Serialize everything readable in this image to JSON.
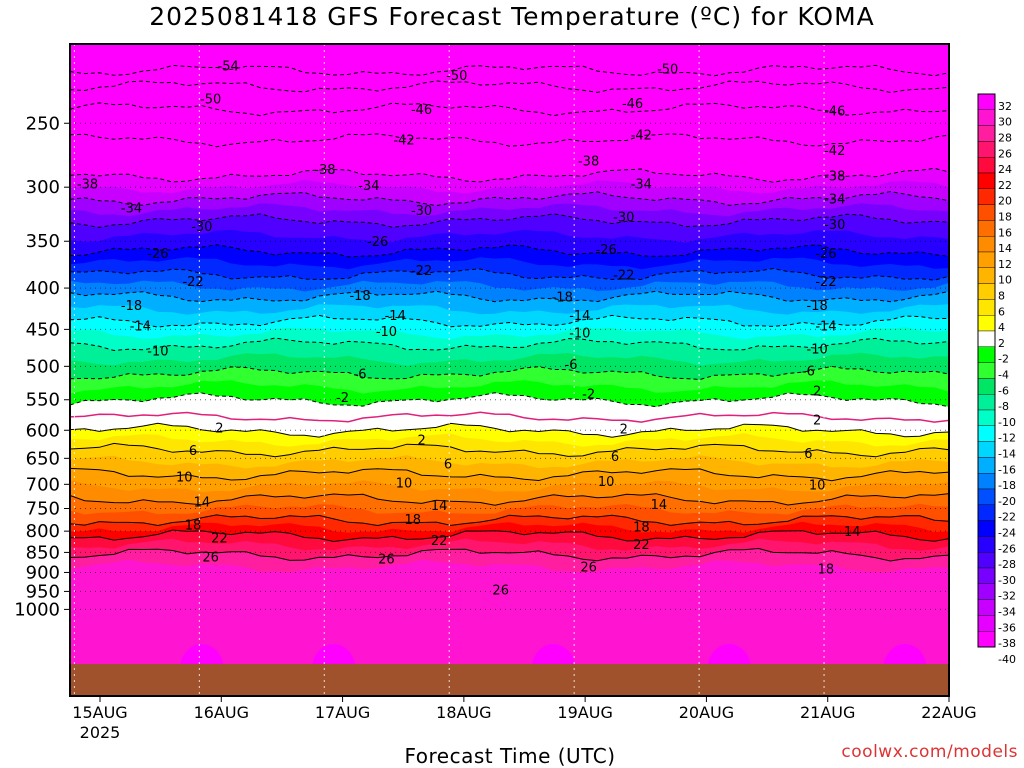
{
  "chart_data": {
    "type": "heatmap",
    "title": "2025081418 GFS Forecast Temperature (ºC) for KOMA",
    "xlabel": "Forecast Time (UTC)",
    "ylabel": "",
    "x_ticks": [
      "15AUG",
      "16AUG",
      "17AUG",
      "18AUG",
      "19AUG",
      "20AUG",
      "21AUG",
      "22AUG"
    ],
    "x_tick_year": "2025",
    "y_ticks": [
      250,
      300,
      350,
      400,
      450,
      500,
      550,
      600,
      650,
      700,
      750,
      800,
      850,
      900,
      950,
      1000
    ],
    "y_axis": {
      "type": "log-pressure",
      "range": [
        1000,
        200
      ],
      "units": "hPa"
    },
    "colorbar": {
      "levels": [
        32,
        30,
        28,
        26,
        24,
        22,
        20,
        18,
        16,
        14,
        12,
        10,
        8,
        6,
        4,
        2,
        -2,
        -4,
        -6,
        -8,
        -10,
        -12,
        -14,
        -16,
        -18,
        -20,
        -22,
        -24,
        -26,
        -28,
        -30,
        -32,
        -34,
        -36,
        -38,
        -40
      ],
      "colors": [
        "#ff00ff",
        "#ff14d2",
        "#ff1ea0",
        "#ff146e",
        "#ff0a3c",
        "#ff0000",
        "#ff2800",
        "#ff5000",
        "#ff6e00",
        "#ff8c00",
        "#ffa000",
        "#ffb400",
        "#ffcd00",
        "#ffe600",
        "#ffff00",
        "#ffffff",
        "#00ff00",
        "#30ff30",
        "#00e664",
        "#00f09a",
        "#00ffc8",
        "#00ffff",
        "#00d7ff",
        "#00afff",
        "#0082ff",
        "#0050ff",
        "#0028ff",
        "#0000ff",
        "#2800ff",
        "#5000ff",
        "#7800ff",
        "#a000ff",
        "#c800ff",
        "#e600ff",
        "#ff00ff"
      ]
    },
    "isotherms": [
      {
        "value": -54,
        "pressure": 215
      },
      {
        "value": -50,
        "pressure": 225
      },
      {
        "value": -46,
        "pressure": 240
      },
      {
        "value": -42,
        "pressure": 262
      },
      {
        "value": -38,
        "pressure": 290
      },
      {
        "value": -34,
        "pressure": 310
      },
      {
        "value": -30,
        "pressure": 330
      },
      {
        "value": -26,
        "pressure": 360
      },
      {
        "value": -22,
        "pressure": 385
      },
      {
        "value": -18,
        "pressure": 410
      },
      {
        "value": -14,
        "pressure": 440
      },
      {
        "value": -10,
        "pressure": 470
      },
      {
        "value": -6,
        "pressure": 510
      },
      {
        "value": -2,
        "pressure": 550
      },
      {
        "value": 2,
        "pressure": 600
      },
      {
        "value": 6,
        "pressure": 635
      },
      {
        "value": 10,
        "pressure": 680
      },
      {
        "value": 14,
        "pressure": 730
      },
      {
        "value": 18,
        "pressure": 775
      },
      {
        "value": 22,
        "pressure": 810
      },
      {
        "value": 26,
        "pressure": 855
      }
    ],
    "contour_labels": [
      {
        "text": "-54",
        "time": 0.18,
        "pressure": 212
      },
      {
        "text": "-50",
        "time": 0.44,
        "pressure": 218
      },
      {
        "text": "-50",
        "time": 0.68,
        "pressure": 214
      },
      {
        "text": "-50",
        "time": 0.16,
        "pressure": 233
      },
      {
        "text": "-46",
        "time": 0.4,
        "pressure": 240
      },
      {
        "text": "-46",
        "time": 0.64,
        "pressure": 236
      },
      {
        "text": "-46",
        "time": 0.87,
        "pressure": 241
      },
      {
        "text": "-42",
        "time": 0.38,
        "pressure": 262
      },
      {
        "text": "-42",
        "time": 0.65,
        "pressure": 258
      },
      {
        "text": "-42",
        "time": 0.87,
        "pressure": 270
      },
      {
        "text": "-38",
        "time": 0.29,
        "pressure": 285
      },
      {
        "text": "-38",
        "time": 0.59,
        "pressure": 278
      },
      {
        "text": "-38",
        "time": 0.87,
        "pressure": 290
      },
      {
        "text": "-38",
        "time": 0.02,
        "pressure": 297
      },
      {
        "text": "-34",
        "time": 0.34,
        "pressure": 298
      },
      {
        "text": "-34",
        "time": 0.65,
        "pressure": 297
      },
      {
        "text": "-34",
        "time": 0.87,
        "pressure": 310
      },
      {
        "text": "-34",
        "time": 0.07,
        "pressure": 318
      },
      {
        "text": "-30",
        "time": 0.4,
        "pressure": 320
      },
      {
        "text": "-30",
        "time": 0.63,
        "pressure": 326
      },
      {
        "text": "-30",
        "time": 0.87,
        "pressure": 333
      },
      {
        "text": "-30",
        "time": 0.15,
        "pressure": 335
      },
      {
        "text": "-26",
        "time": 0.35,
        "pressure": 350
      },
      {
        "text": "-26",
        "time": 0.61,
        "pressure": 358
      },
      {
        "text": "-26",
        "time": 0.86,
        "pressure": 362
      },
      {
        "text": "-26",
        "time": 0.1,
        "pressure": 362
      },
      {
        "text": "-22",
        "time": 0.4,
        "pressure": 380
      },
      {
        "text": "-22",
        "time": 0.63,
        "pressure": 385
      },
      {
        "text": "-22",
        "time": 0.86,
        "pressure": 392
      },
      {
        "text": "-22",
        "time": 0.14,
        "pressure": 392
      },
      {
        "text": "-18",
        "time": 0.33,
        "pressure": 408
      },
      {
        "text": "-18",
        "time": 0.56,
        "pressure": 410
      },
      {
        "text": "-18",
        "time": 0.85,
        "pressure": 420
      },
      {
        "text": "-18",
        "time": 0.07,
        "pressure": 420
      },
      {
        "text": "-14",
        "time": 0.37,
        "pressure": 432
      },
      {
        "text": "-14",
        "time": 0.58,
        "pressure": 432
      },
      {
        "text": "-14",
        "time": 0.86,
        "pressure": 445
      },
      {
        "text": "-14",
        "time": 0.08,
        "pressure": 445
      },
      {
        "text": "-10",
        "time": 0.36,
        "pressure": 452
      },
      {
        "text": "-10",
        "time": 0.58,
        "pressure": 454
      },
      {
        "text": "-10",
        "time": 0.85,
        "pressure": 475
      },
      {
        "text": "-10",
        "time": 0.1,
        "pressure": 478
      },
      {
        "text": "-6",
        "time": 0.33,
        "pressure": 510
      },
      {
        "text": "-6",
        "time": 0.57,
        "pressure": 497
      },
      {
        "text": "-6",
        "time": 0.84,
        "pressure": 506
      },
      {
        "text": "-2",
        "time": 0.31,
        "pressure": 546
      },
      {
        "text": "-2",
        "time": 0.59,
        "pressure": 540
      },
      {
        "text": "2",
        "time": 0.85,
        "pressure": 536
      },
      {
        "text": "2",
        "time": 0.17,
        "pressure": 595
      },
      {
        "text": "2",
        "time": 0.63,
        "pressure": 597
      },
      {
        "text": "2",
        "time": 0.85,
        "pressure": 582
      },
      {
        "text": "2",
        "time": 0.4,
        "pressure": 616
      },
      {
        "text": "6",
        "time": 0.14,
        "pressure": 635
      },
      {
        "text": "6",
        "time": 0.43,
        "pressure": 660
      },
      {
        "text": "6",
        "time": 0.62,
        "pressure": 646
      },
      {
        "text": "6",
        "time": 0.84,
        "pressure": 640
      },
      {
        "text": "10",
        "time": 0.13,
        "pressure": 685
      },
      {
        "text": "10",
        "time": 0.38,
        "pressure": 696
      },
      {
        "text": "10",
        "time": 0.61,
        "pressure": 693
      },
      {
        "text": "10",
        "time": 0.85,
        "pressure": 700
      },
      {
        "text": "14",
        "time": 0.15,
        "pressure": 735
      },
      {
        "text": "14",
        "time": 0.42,
        "pressure": 742
      },
      {
        "text": "14",
        "time": 0.67,
        "pressure": 740
      },
      {
        "text": "14",
        "time": 0.89,
        "pressure": 800
      },
      {
        "text": "18",
        "time": 0.14,
        "pressure": 785
      },
      {
        "text": "18",
        "time": 0.39,
        "pressure": 773
      },
      {
        "text": "18",
        "time": 0.65,
        "pressure": 790
      },
      {
        "text": "18",
        "time": 0.86,
        "pressure": 890
      },
      {
        "text": "22",
        "time": 0.17,
        "pressure": 815
      },
      {
        "text": "22",
        "time": 0.42,
        "pressure": 820
      },
      {
        "text": "22",
        "time": 0.65,
        "pressure": 830
      },
      {
        "text": "26",
        "time": 0.16,
        "pressure": 860
      },
      {
        "text": "26",
        "time": 0.36,
        "pressure": 865
      },
      {
        "text": "26",
        "time": 0.59,
        "pressure": 885
      },
      {
        "text": "26",
        "time": 0.49,
        "pressure": 945
      }
    ],
    "grid": true,
    "ground_color": "#a0522d"
  },
  "credit": "coolwx.com/models"
}
